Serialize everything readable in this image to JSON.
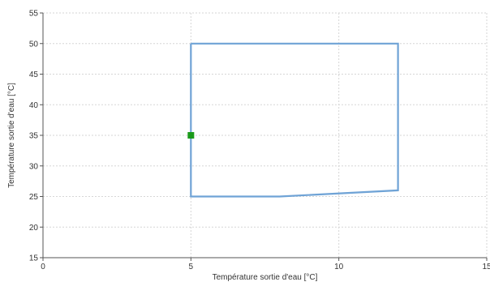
{
  "chart_data": {
    "type": "line",
    "xlabel": "Température sortie d'eau [°C]",
    "ylabel": "Température sortie d'eau [°C]",
    "xlim": [
      0,
      15
    ],
    "ylim": [
      15,
      55
    ],
    "x_ticks": [
      0,
      5,
      10,
      15
    ],
    "y_ticks": [
      15,
      20,
      25,
      30,
      35,
      40,
      45,
      50,
      55
    ],
    "grid": true,
    "series": [
      {
        "color": "#6fa3d6",
        "points": [
          [
            5,
            50
          ],
          [
            12,
            50
          ],
          [
            12,
            26
          ],
          [
            8,
            25
          ],
          [
            5,
            25
          ],
          [
            5,
            50
          ]
        ]
      },
      {
        "type": "scatter",
        "color": "#1a9a1a",
        "points": [
          [
            5,
            35
          ]
        ]
      }
    ]
  },
  "colors": {
    "grid": "#d6d6d6",
    "axis": "#555555"
  }
}
